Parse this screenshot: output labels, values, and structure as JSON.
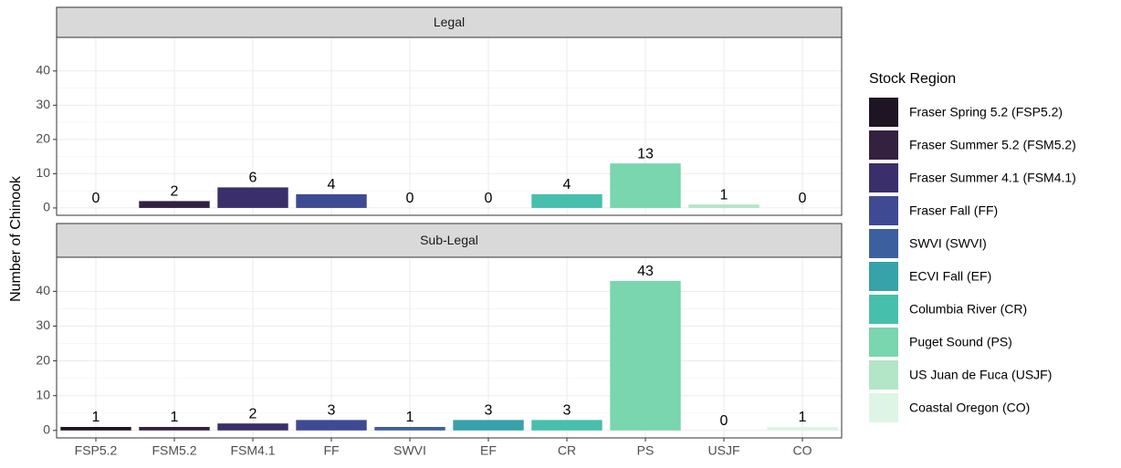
{
  "ylabel": "Number of Chinook",
  "legend": {
    "title": "Stock Region",
    "entries": [
      "Fraser Spring 5.2 (FSP5.2)",
      "Fraser Summer 5.2 (FSM5.2)",
      "Fraser Summer 4.1 (FSM4.1)",
      "Fraser Fall (FF)",
      "SWVI (SWVI)",
      "ECVI Fall (EF)",
      "Columbia River (CR)",
      "Puget Sound (PS)",
      "US Juan de Fuca (USJF)",
      "Coastal Oregon (CO)"
    ],
    "colors": [
      "#1f1423",
      "#33213f",
      "#3b2f6b",
      "#3e4a93",
      "#3c5fa0",
      "#36a2aa",
      "#47bfad",
      "#79d6ae",
      "#b3e5c7",
      "#def5e5"
    ]
  },
  "chart_data": [
    {
      "type": "bar",
      "title": "Legal",
      "values": [
        0,
        2,
        6,
        4,
        0,
        0,
        4,
        13,
        1,
        0
      ],
      "ylim": [
        -2.15,
        49.8
      ],
      "yticks": [
        0,
        10,
        20,
        30,
        40
      ],
      "grid": true
    },
    {
      "type": "bar",
      "title": "Sub-Legal",
      "categories": [
        "FSP5.2",
        "FSM5.2",
        "FSM4.1",
        "FF",
        "SWVI",
        "EF",
        "CR",
        "PS",
        "USJF",
        "CO"
      ],
      "values": [
        1,
        1,
        2,
        3,
        1,
        3,
        3,
        43,
        0,
        1
      ],
      "ylim": [
        -2.15,
        49.8
      ],
      "yticks": [
        0,
        10,
        20,
        30,
        40
      ],
      "grid": true
    }
  ]
}
